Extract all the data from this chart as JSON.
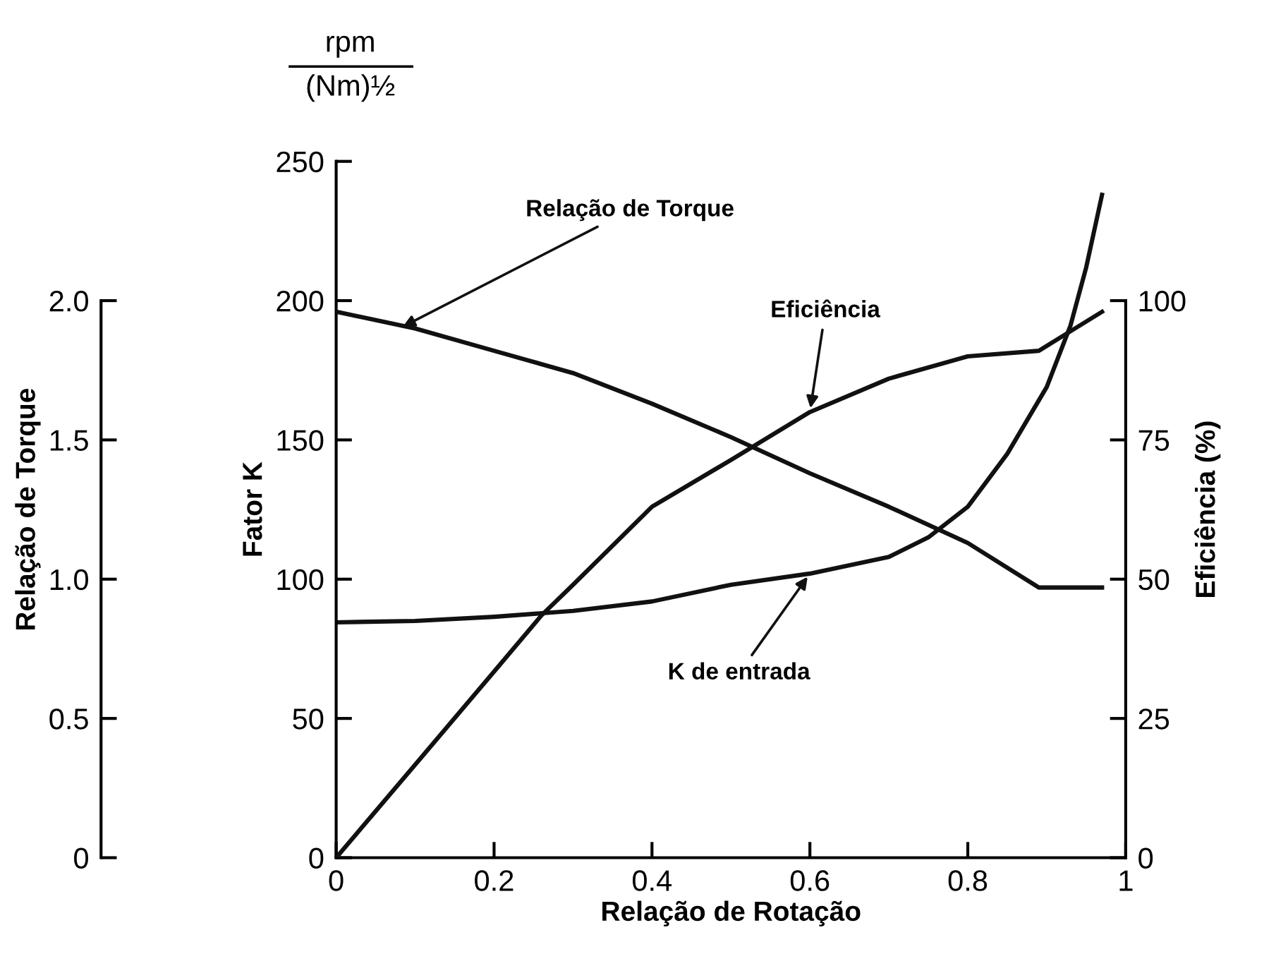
{
  "chart_data": {
    "type": "line",
    "xlabel": "Relação de Rotação",
    "ylabel": "Fator K",
    "y2label": "Eficiência (%)",
    "y3label": "Relação de Torque",
    "annotations": [
      "rpm",
      "(Nm)½"
    ],
    "xlim": [
      0,
      1
    ],
    "xticks": [
      0,
      0.2,
      0.4,
      0.6,
      0.8,
      1
    ],
    "ylim": [
      0,
      250
    ],
    "yticks": [
      0,
      50,
      100,
      150,
      200,
      250
    ],
    "y2lim": [
      0,
      125
    ],
    "y2ticks": [
      0,
      25,
      50,
      75,
      100
    ],
    "y3lim": [
      0,
      2.5
    ],
    "y3ticks": [
      {
        "value": 0,
        "label": "0"
      },
      {
        "value": 0.5,
        "label": "0.5"
      },
      {
        "value": 1.0,
        "label": "1.0"
      },
      {
        "value": 1.5,
        "label": "1.5"
      },
      {
        "value": 2.0,
        "label": "2.0"
      }
    ],
    "grid": false,
    "legend": false,
    "marker": "none",
    "line_style": "solid",
    "series": [
      {
        "name": "Relação de Torque",
        "color": "#111111",
        "axis": "y3",
        "x": [
          0,
          0.1,
          0.2,
          0.3,
          0.4,
          0.5,
          0.6,
          0.7,
          0.8,
          0.89,
          0.97
        ],
        "values": [
          1.96,
          1.9,
          1.82,
          1.74,
          1.63,
          1.51,
          1.38,
          1.26,
          1.13,
          0.97,
          0.97
        ]
      },
      {
        "name": "Eficiência",
        "color": "#111111",
        "axis": "y2",
        "x": [
          0,
          0.1,
          0.2,
          0.26,
          0.3,
          0.4,
          0.5,
          0.6,
          0.7,
          0.8,
          0.89,
          0.97
        ],
        "values": [
          0,
          16.7,
          33.4,
          43.5,
          49,
          63,
          71.4,
          80,
          86,
          90,
          91,
          98
        ]
      },
      {
        "name": "K de entrada",
        "color": "#111111",
        "x": [
          0,
          0.1,
          0.2,
          0.3,
          0.4,
          0.5,
          0.6,
          0.7,
          0.75,
          0.8,
          0.85,
          0.9,
          0.93,
          0.95,
          0.97
        ],
        "values": [
          84.5,
          85,
          86.5,
          88.6,
          92,
          98,
          102,
          108,
          115,
          126,
          145,
          169,
          191,
          212,
          238
        ]
      }
    ]
  }
}
